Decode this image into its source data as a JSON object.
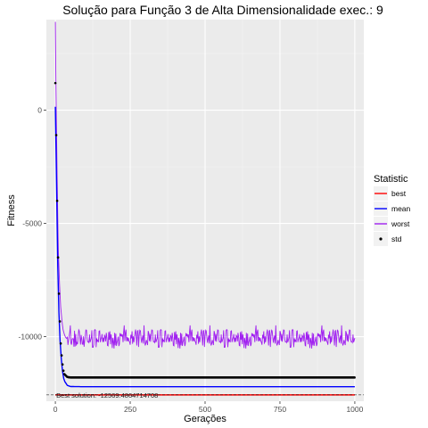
{
  "chart_data": {
    "type": "line",
    "title": "Solução para Função 3 de Alta Dimensionalidade exec.: 9",
    "xlabel": "Gerações",
    "ylabel": "Fitness",
    "xlim": [
      -30,
      1030
    ],
    "ylim": [
      -12850,
      4000
    ],
    "x_ticks": [
      0,
      250,
      500,
      750,
      1000
    ],
    "x_tick_labels": [
      "0",
      "250",
      "500",
      "750",
      "1000"
    ],
    "y_ticks": [
      0,
      -5000,
      -10000
    ],
    "y_tick_labels": [
      "0",
      "-5000",
      "-10000"
    ],
    "grid": true,
    "legend": {
      "title": "Statistic",
      "position": "right"
    },
    "series": [
      {
        "name": "best",
        "color": "#ff0000",
        "style": "line",
        "x": [
          0,
          1000
        ],
        "y": [
          -12569.5,
          -12569.5
        ]
      },
      {
        "name": "mean",
        "color": "#0000ff",
        "style": "line",
        "x": [
          0,
          2,
          4,
          6,
          8,
          10,
          14,
          18,
          22,
          26,
          30,
          40,
          50,
          100,
          1000
        ],
        "y": [
          150,
          -1200,
          -3200,
          -5200,
          -6900,
          -8200,
          -9700,
          -10700,
          -11300,
          -11750,
          -11950,
          -12150,
          -12200,
          -12210,
          -12210
        ]
      },
      {
        "name": "worst",
        "color": "#a020f0",
        "style": "line",
        "noise_band": [
          -10700,
          -9500
        ],
        "noise_from_x": 40,
        "x": [
          0,
          2,
          4,
          6,
          8,
          10,
          14,
          18,
          22,
          26,
          30,
          35,
          40,
          1000
        ],
        "y": [
          3900,
          1200,
          -1000,
          -3000,
          -4800,
          -6200,
          -7700,
          -8700,
          -9300,
          -9700,
          -9900,
          -10050,
          -10100,
          -10100
        ]
      },
      {
        "name": "std",
        "color": "#000000",
        "style": "point",
        "x": [
          0,
          2,
          4,
          6,
          8,
          10,
          14,
          18,
          22,
          26,
          30,
          40,
          50,
          1000
        ],
        "y": [
          1200,
          -200,
          -2000,
          -4000,
          -5800,
          -7200,
          -9000,
          -10300,
          -11000,
          -11450,
          -11650,
          -11780,
          -11800,
          -11800
        ]
      }
    ],
    "annotation": {
      "text": "Best solution: -12569.4864714708",
      "x": 0,
      "y": -12569.5
    }
  }
}
